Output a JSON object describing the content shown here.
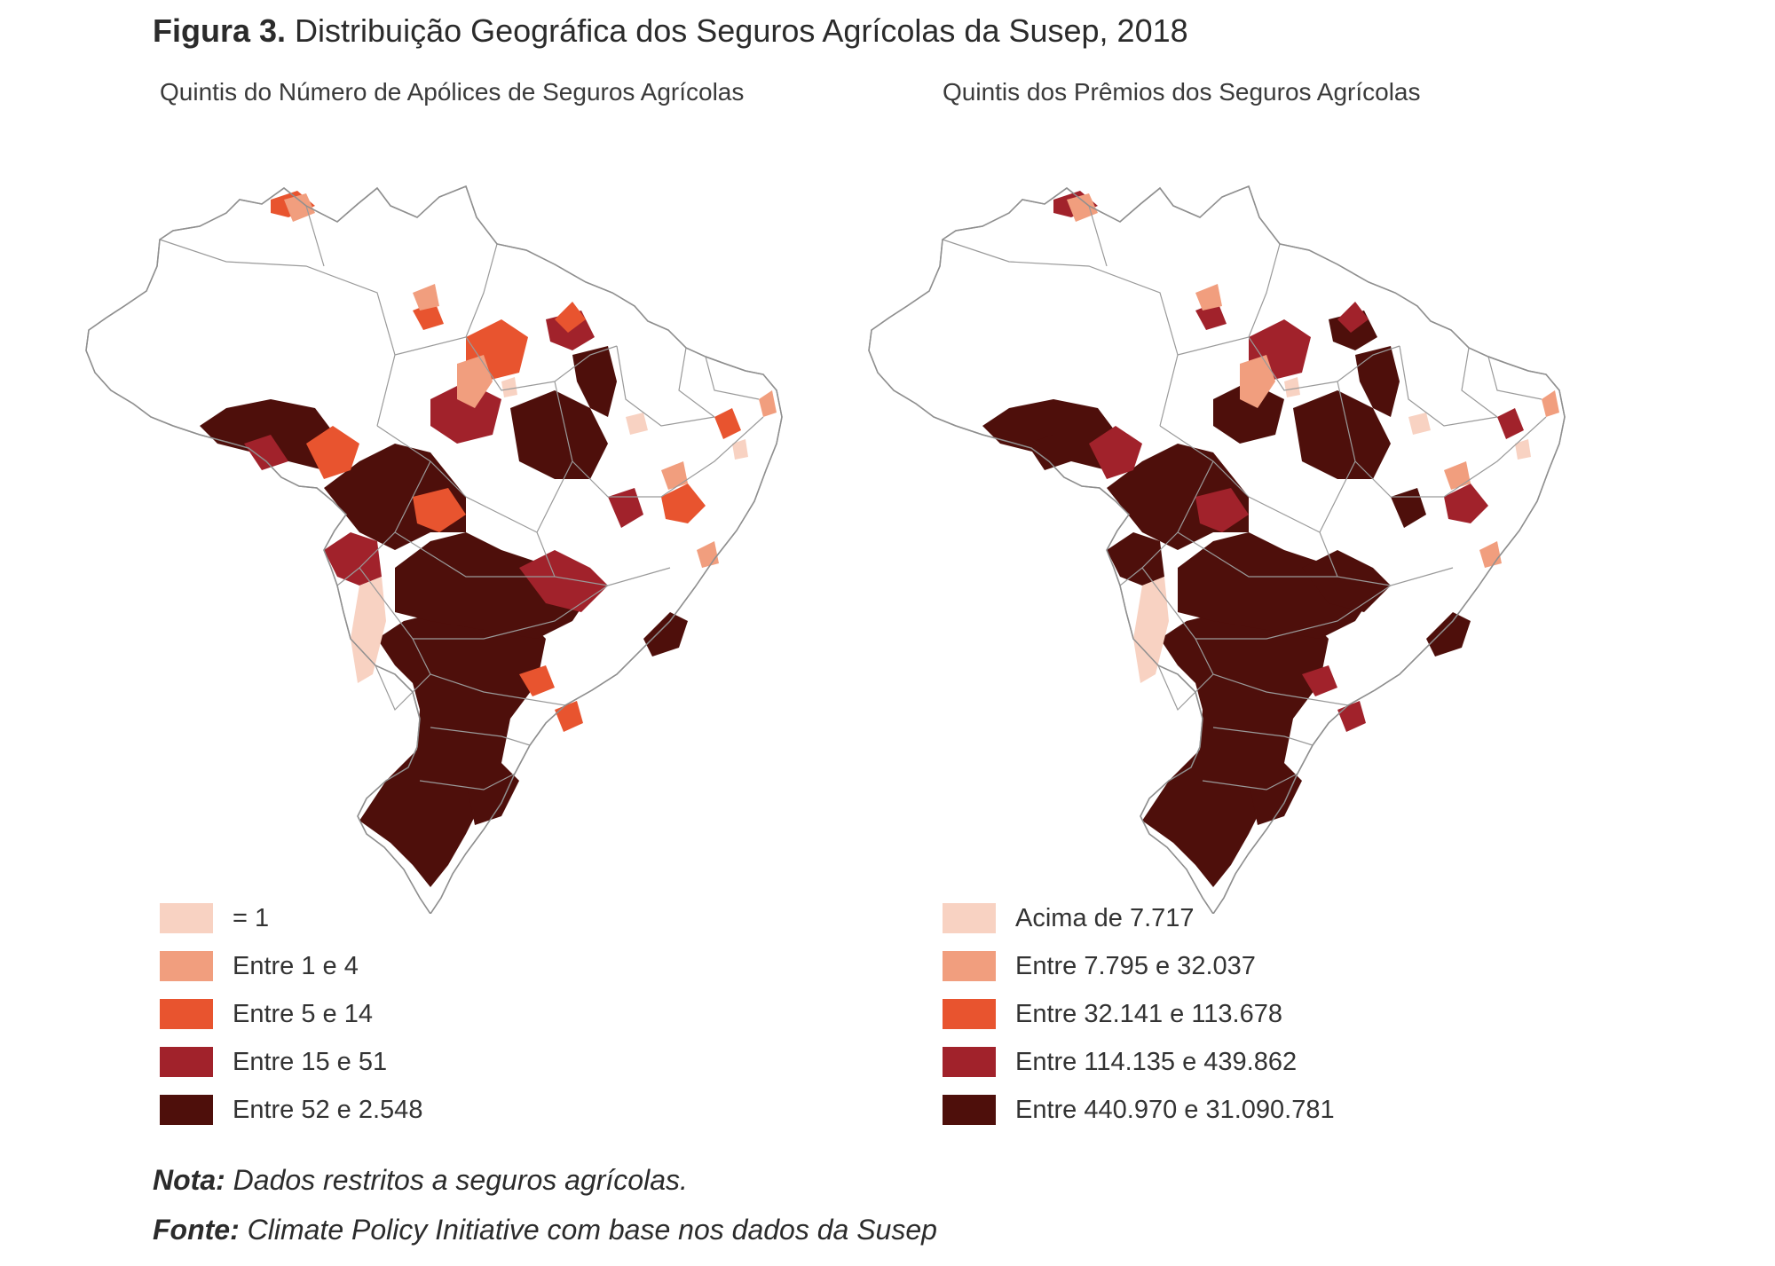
{
  "figure": {
    "label": "Figura 3.",
    "title": "Distribuição Geográfica dos Seguros Agrícolas da Susep, 2018"
  },
  "colors": {
    "q1": "#f8d2c2",
    "q2": "#f19e7e",
    "q3": "#e8542f",
    "q4": "#a1222b",
    "q5": "#4e0f0b",
    "border": "#9a9a9a",
    "land": "#ffffff"
  },
  "panels": [
    {
      "subtitle": "Quintis do Número de Apólices de Seguros Agrícolas",
      "legend": [
        {
          "label": "= 1",
          "color_key": "q1"
        },
        {
          "label": "Entre 1 e 4",
          "color_key": "q2"
        },
        {
          "label": "Entre 5 e 14",
          "color_key": "q3"
        },
        {
          "label": "Entre 15 e 51",
          "color_key": "q4"
        },
        {
          "label": "Entre 52 e 2.548",
          "color_key": "q5"
        }
      ]
    },
    {
      "subtitle": "Quintis dos Prêmios dos Seguros Agrícolas",
      "legend": [
        {
          "label": "Acima de 7.717",
          "color_key": "q1"
        },
        {
          "label": "Entre 7.795 e 32.037",
          "color_key": "q2"
        },
        {
          "label": "Entre 32.141 e 113.678",
          "color_key": "q3"
        },
        {
          "label": "Entre 114.135 e 439.862",
          "color_key": "q4"
        },
        {
          "label": "Entre 440.970 e 31.090.781",
          "color_key": "q5"
        }
      ]
    }
  ],
  "note": {
    "label": "Nota:",
    "text": " Dados restritos a seguros agrícolas."
  },
  "source": {
    "label": "Fonte:",
    "text": " Climate Policy Initiative com base nos dados da Susep"
  }
}
